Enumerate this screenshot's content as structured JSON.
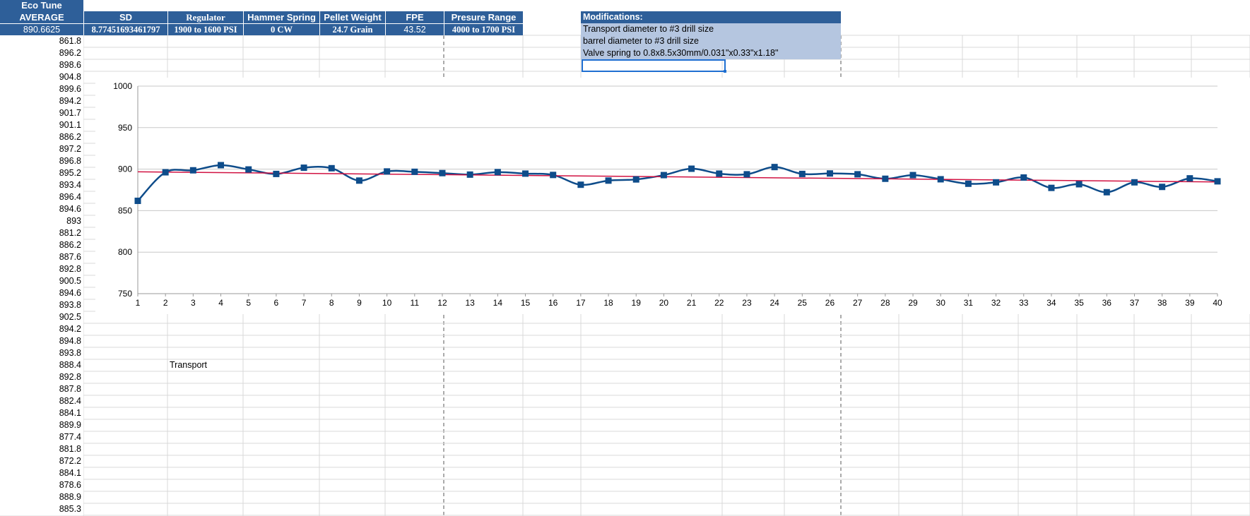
{
  "sheet": {
    "title_cell": "Eco Tune",
    "headers": [
      "AVERAGE",
      "SD",
      "Regulator",
      "Hammer Spring",
      "Pellet Weight",
      "FPE",
      "Presure Range"
    ],
    "values": [
      "890.6625",
      "8.77451693461797",
      "1900 to 1600 PSI",
      "0 CW",
      "24.7 Grain",
      "43.52",
      "4000 to 1700 PSI"
    ],
    "column_a": [
      "861.8",
      "896.2",
      "898.6",
      "904.8",
      "899.6",
      "894.2",
      "901.7",
      "901.1",
      "886.2",
      "897.2",
      "896.8",
      "895.2",
      "893.4",
      "896.4",
      "894.6",
      "893",
      "881.2",
      "886.2",
      "887.6",
      "892.8",
      "900.5",
      "894.6",
      "893.8",
      "902.5",
      "894.2",
      "894.8",
      "893.8",
      "888.4",
      "892.8",
      "887.8",
      "882.4",
      "884.1",
      "889.9",
      "877.4",
      "881.8",
      "872.2",
      "884.1",
      "878.6",
      "888.9",
      "885.3"
    ],
    "note_cell": "Transport",
    "modifications": {
      "title": "Modifications:",
      "lines": [
        "Transport diameter to #3 drill size",
        "barrel diameter to #3 drill size",
        "Valve spring to 0.8x8.5x30mm/0.031\"x0.33\"x1.18\""
      ]
    }
  },
  "chart_data": {
    "type": "line",
    "title": "",
    "xlabel": "",
    "ylabel": "",
    "x": [
      1,
      2,
      3,
      4,
      5,
      6,
      7,
      8,
      9,
      10,
      11,
      12,
      13,
      14,
      15,
      16,
      17,
      18,
      19,
      20,
      21,
      22,
      23,
      24,
      25,
      26,
      27,
      28,
      29,
      30,
      31,
      32,
      33,
      34,
      35,
      36,
      37,
      38,
      39,
      40
    ],
    "series": [
      {
        "values": [
          861.8,
          896.2,
          898.6,
          904.8,
          899.6,
          894.2,
          901.7,
          901.1,
          886.2,
          897.2,
          896.8,
          895.2,
          893.4,
          896.4,
          894.6,
          893,
          881.2,
          886.2,
          887.6,
          892.8,
          900.5,
          894.6,
          893.8,
          902.5,
          894.2,
          894.8,
          893.8,
          888.4,
          892.8,
          887.8,
          882.4,
          884.1,
          889.9,
          877.4,
          881.8,
          872.2,
          884.1,
          878.6,
          888.9,
          885.3
        ],
        "color": "#0e4c8a",
        "marker": "square",
        "smooth": true
      }
    ],
    "trendline": {
      "type": "linear",
      "color": "#d11242"
    },
    "ylim": [
      750,
      1000
    ],
    "yticks": [
      750,
      800,
      850,
      900,
      950,
      1000
    ],
    "xlim": [
      1,
      40
    ],
    "grid": true,
    "legend": "none"
  },
  "colors": {
    "header_blue": "#2e5f99",
    "mod_fill": "#b5c6e0",
    "selection": "#1f6fd1",
    "gridline": "#d9d9d9"
  }
}
